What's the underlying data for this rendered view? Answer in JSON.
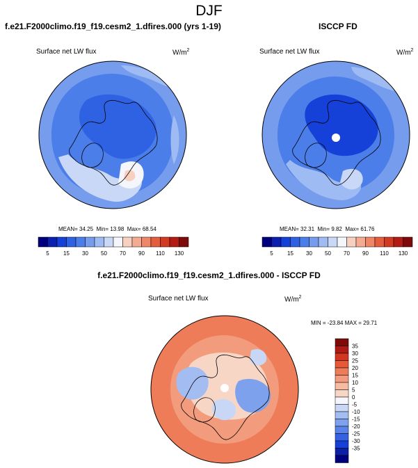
{
  "page_title": "DJF",
  "chart_data": [
    {
      "type": "contour_map",
      "projection": "north polar stereographic",
      "title": "f.e21.F2000climo.f19_f19.cesm2_1.dfires.000 (yrs 1-19)",
      "variable": "Surface net LW flux",
      "units": "W/m",
      "units_exp": "2",
      "stats": {
        "mean_label": "MEAN=",
        "mean": "34.25",
        "min_label": "Min=",
        "min": "13.98",
        "max_label": "Max=",
        "max": "68.54"
      },
      "colorbar": {
        "orientation": "horizontal",
        "levels": [
          "5",
          "15",
          "30",
          "50",
          "70",
          "90",
          "110",
          "130"
        ],
        "colors": [
          "#00007f",
          "#0b1fb0",
          "#1541d8",
          "#2f62e3",
          "#4c7ee9",
          "#769cee",
          "#9fbbf3",
          "#c9d8f6",
          "#f4f6fb",
          "#f8d0c0",
          "#f4ab92",
          "#ee8667",
          "#e45e3e",
          "#d33a22",
          "#b31b14",
          "#7e0a0a"
        ]
      }
    },
    {
      "type": "contour_map",
      "projection": "north polar stereographic",
      "title": "ISCCP FD",
      "variable": "Surface net LW flux",
      "units": "W/m",
      "units_exp": "2",
      "stats": {
        "mean_label": "MEAN=",
        "mean": "32.31",
        "min_label": "Min=",
        "min": "9.82",
        "max_label": "Max=",
        "max": "61.76"
      },
      "colorbar": {
        "orientation": "horizontal",
        "levels": [
          "5",
          "15",
          "30",
          "50",
          "70",
          "90",
          "110",
          "130"
        ],
        "colors": [
          "#00007f",
          "#0b1fb0",
          "#1541d8",
          "#2f62e3",
          "#4c7ee9",
          "#769cee",
          "#9fbbf3",
          "#c9d8f6",
          "#f4f6fb",
          "#f8d0c0",
          "#f4ab92",
          "#ee8667",
          "#e45e3e",
          "#d33a22",
          "#b31b14",
          "#7e0a0a"
        ]
      }
    },
    {
      "type": "contour_map",
      "projection": "north polar stereographic",
      "title": "f.e21.F2000climo.f19_f19.cesm2_1.dfires.000 - ISCCP FD",
      "variable": "Surface net LW flux",
      "units": "W/m",
      "units_exp": "2",
      "stats_text": "MIN = -23.84 MAX =  29.71",
      "colorbar": {
        "orientation": "vertical",
        "levels": [
          "35",
          "30",
          "25",
          "20",
          "15",
          "10",
          "5",
          "0",
          "-5",
          "-10",
          "-15",
          "-20",
          "-25",
          "-30",
          "-35"
        ],
        "colors": [
          "#7e0a0a",
          "#b01a14",
          "#d23620",
          "#e65a38",
          "#ee7c58",
          "#f39c7d",
          "#f7bba2",
          "#f8d6c6",
          "#f4f6fb",
          "#c8d7f5",
          "#a3bdf3",
          "#7ea1ee",
          "#5a83e9",
          "#3562e3",
          "#1541d8",
          "#0b20a6",
          "#00007f"
        ]
      }
    }
  ]
}
